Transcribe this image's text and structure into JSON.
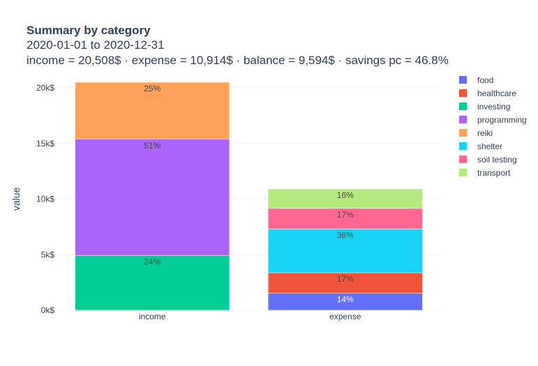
{
  "chart_data": {
    "type": "bar",
    "stacked": true,
    "title": "Summary by category",
    "subtitle_lines": [
      "2020-01-01 to 2020-12-31",
      "income = 20,508$ · expense = 10,914$ · balance = 9,594$ · savings pc = 46.8%"
    ],
    "categories": [
      "income",
      "expense"
    ],
    "ylabel": "value",
    "ylim": [
      0,
      20508
    ],
    "yticks": [
      0,
      5000,
      10000,
      15000,
      20000
    ],
    "ytick_labels": [
      "0k$",
      "5k$",
      "10k$",
      "15k$",
      "20k$"
    ],
    "grid": true,
    "legend_position": "right",
    "series": [
      {
        "name": "food",
        "color": "#636efa",
        "values": [
          0,
          1528
        ],
        "labels": [
          "",
          "14%"
        ],
        "label_color": "#ffffff"
      },
      {
        "name": "healthcare",
        "color": "#ef553b",
        "values": [
          0,
          1855
        ],
        "labels": [
          "",
          "17%"
        ],
        "label_color": "#444444"
      },
      {
        "name": "investing",
        "color": "#00cc96",
        "values": [
          4922,
          0
        ],
        "labels": [
          "24%",
          ""
        ],
        "label_color": "#444444"
      },
      {
        "name": "programming",
        "color": "#ab63fa",
        "values": [
          10459,
          0
        ],
        "labels": [
          "51%",
          ""
        ],
        "label_color": "#444444"
      },
      {
        "name": "reiki",
        "color": "#ffa15a",
        "values": [
          5127,
          0
        ],
        "labels": [
          "25%",
          ""
        ],
        "label_color": "#444444"
      },
      {
        "name": "shelter",
        "color": "#19d3f3",
        "values": [
          0,
          3929
        ],
        "labels": [
          "",
          "36%"
        ],
        "label_color": "#444444"
      },
      {
        "name": "soil testing",
        "color": "#ff6692",
        "values": [
          0,
          1855
        ],
        "labels": [
          "",
          "17%"
        ],
        "label_color": "#444444"
      },
      {
        "name": "transport",
        "color": "#b6e880",
        "values": [
          0,
          1747
        ],
        "labels": [
          "",
          "16%"
        ],
        "label_color": "#444444"
      }
    ]
  }
}
